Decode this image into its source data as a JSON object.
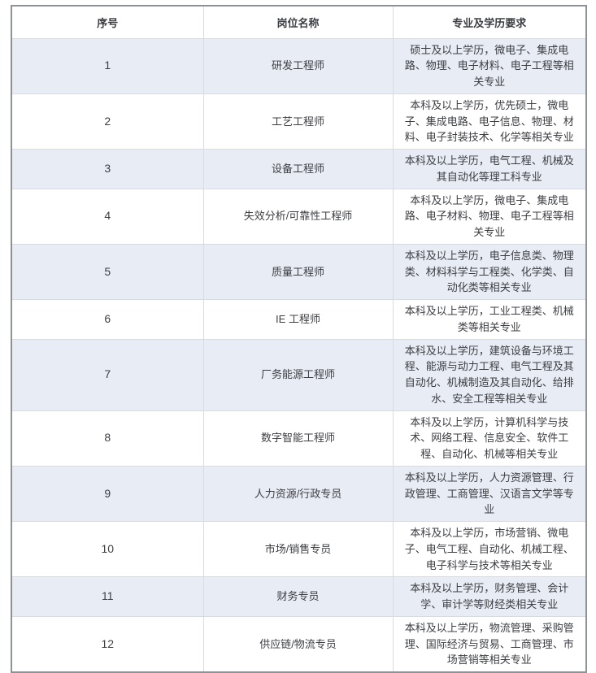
{
  "colors": {
    "stripe-bg": "#e8ecf4",
    "grid-border": "#d8dbe1",
    "outer-border": "#8e9196",
    "text-color": "#3c3e43"
  },
  "table": {
    "headers": [
      "序号",
      "岗位名称",
      "专业及学历要求"
    ],
    "rows": [
      {
        "no": "1",
        "position": "研发工程师",
        "requirements": "硕士及以上学历，微电子、集成电路、物理、电子材料、电子工程等相关专业"
      },
      {
        "no": "2",
        "position": "工艺工程师",
        "requirements": "本科及以上学历，优先硕士，微电子、集成电路、电子信息、物理、材料、电子封装技术、化学等相关专业"
      },
      {
        "no": "3",
        "position": "设备工程师",
        "requirements": "本科及以上学历，电气工程、机械及其自动化等理工科专业"
      },
      {
        "no": "4",
        "position": "失效分析/可靠性工程师",
        "requirements": "本科及以上学历，微电子、集成电路、电子材料、物理、电子工程等相关专业"
      },
      {
        "no": "5",
        "position": "质量工程师",
        "requirements": "本科及以上学历，电子信息类、物理类、材料科学与工程类、化学类、自动化类等相关专业"
      },
      {
        "no": "6",
        "position": "IE 工程师",
        "requirements": "本科及以上学历，工业工程类、机械类等相关专业"
      },
      {
        "no": "7",
        "position": "厂务能源工程师",
        "requirements": "本科及以上学历，建筑设备与环境工程、能源与动力工程、电气工程及其自动化、机械制造及其自动化、给排水、安全工程等相关专业"
      },
      {
        "no": "8",
        "position": "数字智能工程师",
        "requirements": "本科及以上学历，计算机科学与技术、网络工程、信息安全、软件工程、自动化、机械等相关专业"
      },
      {
        "no": "9",
        "position": "人力资源/行政专员",
        "requirements": "本科及以上学历，人力资源管理、行政管理、工商管理、汉语言文学等专业"
      },
      {
        "no": "10",
        "position": "市场/销售专员",
        "requirements": "本科及以上学历，市场营销、微电子、电气工程、自动化、机械工程、电子科学与技术等相关专业"
      },
      {
        "no": "11",
        "position": "财务专员",
        "requirements": "本科及以上学历，财务管理、会计学、审计学等财经类相关专业"
      },
      {
        "no": "12",
        "position": "供应链/物流专员",
        "requirements": "本科及以上学历，物流管理、采购管理、国际经济与贸易、工商管理、市场营销等相关专业"
      }
    ]
  }
}
